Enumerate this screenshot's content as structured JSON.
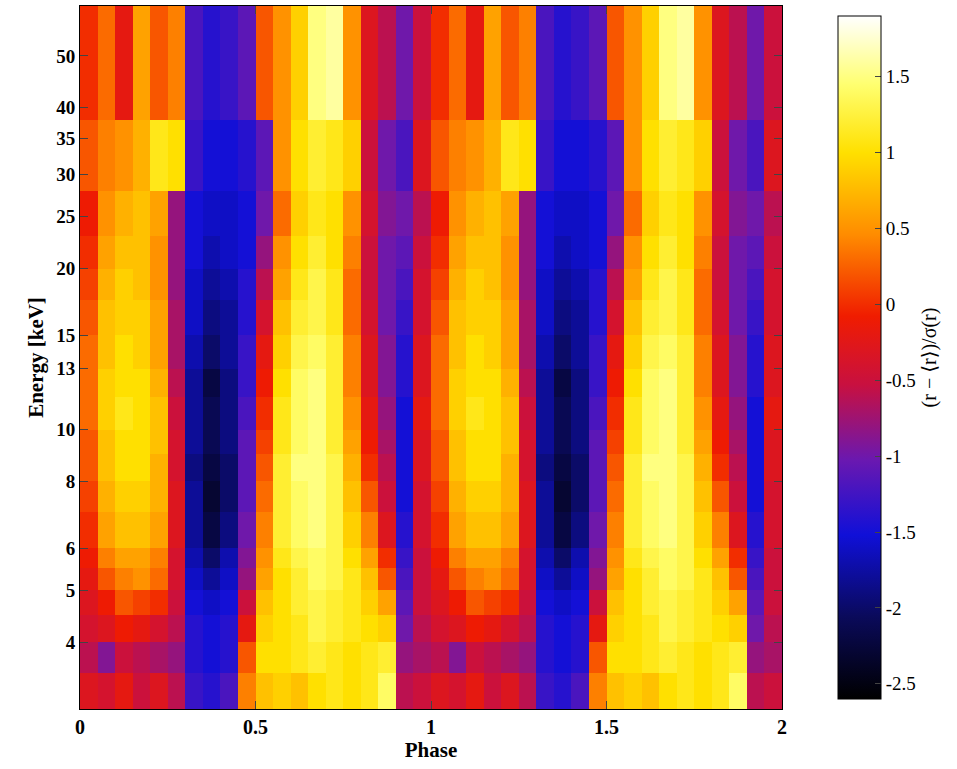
{
  "chart_data": {
    "type": "heatmap",
    "x_label": "Phase",
    "y_label": "Energy [keV]",
    "colorbar_label": "(r − ⟨r⟩)/σ(r)",
    "log": "y",
    "xlim": [
      0,
      2
    ],
    "xticks": [
      0,
      0.5,
      1,
      1.5,
      2
    ],
    "ylim": [
      3,
      62
    ],
    "yticks": [
      4,
      5,
      6,
      8,
      10,
      13,
      15,
      20,
      25,
      30,
      35,
      40,
      50
    ],
    "zlim": [
      -2.6,
      1.9
    ],
    "zticks": [
      -2.5,
      -2,
      -1.5,
      -1,
      -0.5,
      0,
      0.5,
      1,
      1.5
    ],
    "phase_bins": [
      0,
      0.05,
      0.1,
      0.15,
      0.2,
      0.25,
      0.3,
      0.35,
      0.4,
      0.45,
      0.5,
      0.55,
      0.6,
      0.65,
      0.7,
      0.75,
      0.8,
      0.85,
      0.9,
      0.95,
      1,
      1.05,
      1.1,
      1.15,
      1.2,
      1.25,
      1.3,
      1.35,
      1.4,
      1.45,
      1.5,
      1.55,
      1.6,
      1.65,
      1.7,
      1.75,
      1.8,
      1.85,
      1.9,
      1.95,
      2
    ],
    "energy_bins": [
      3,
      3.5,
      4,
      4.5,
      5,
      5.5,
      6,
      7,
      8,
      9,
      10,
      11.5,
      13,
      15,
      17.5,
      20,
      23,
      28,
      38,
      62
    ],
    "values": [
      [
        -0.3,
        -0.4,
        -0.2,
        -0.5,
        -0.3,
        -0.6,
        -1.3,
        -1.4,
        -1.2,
        0.4,
        0.8,
        0.9,
        0.8,
        1.0,
        1.1,
        1.0,
        1.1,
        1.4,
        -0.6,
        -0.5,
        -0.3,
        -0.4,
        -0.2,
        -0.5,
        -0.3,
        -0.6,
        -1.3,
        -1.4,
        -1.2,
        0.4,
        0.8,
        0.9,
        0.8,
        1.0,
        1.1,
        1.0,
        1.1,
        1.4,
        -0.6,
        -0.5
      ],
      [
        -0.6,
        -0.9,
        -0.5,
        -0.6,
        -0.7,
        -0.8,
        -1.4,
        -1.5,
        -1.4,
        0.2,
        1.0,
        1.0,
        1.1,
        1.2,
        1.1,
        1.0,
        1.1,
        1.2,
        -0.8,
        -0.7,
        -0.6,
        -0.9,
        -0.5,
        -0.6,
        -0.7,
        -0.8,
        -1.4,
        -1.5,
        -1.4,
        0.2,
        1.0,
        1.0,
        1.1,
        1.2,
        1.1,
        1.0,
        1.1,
        1.2,
        -0.8,
        -0.7
      ],
      [
        -0.4,
        -0.3,
        -0.1,
        -0.2,
        -0.4,
        -0.6,
        -1.4,
        -1.5,
        -1.4,
        -0.2,
        0.9,
        1.0,
        1.1,
        1.3,
        1.2,
        1.1,
        1.0,
        0.9,
        -1.0,
        -0.6,
        -0.4,
        -0.3,
        -0.1,
        -0.2,
        -0.4,
        -0.6,
        -1.4,
        -1.5,
        -1.4,
        -0.2,
        0.9,
        1.0,
        1.1,
        1.3,
        1.2,
        1.1,
        1.0,
        0.9,
        -1.0,
        -0.6
      ],
      [
        -0.3,
        -0.1,
        0.2,
        0.1,
        0.0,
        -0.5,
        -1.5,
        -1.6,
        -1.5,
        -0.5,
        0.8,
        1.0,
        1.2,
        1.3,
        1.2,
        1.1,
        0.9,
        0.6,
        -1.1,
        -0.5,
        -0.3,
        -0.1,
        0.2,
        0.1,
        0.0,
        -0.5,
        -1.5,
        -1.6,
        -1.5,
        -0.5,
        0.8,
        1.0,
        1.2,
        1.3,
        1.2,
        1.1,
        0.9,
        0.6,
        -1.1,
        -0.5
      ],
      [
        -0.2,
        0.2,
        0.4,
        0.5,
        0.3,
        -0.4,
        -1.6,
        -1.8,
        -1.6,
        -0.8,
        0.6,
        1.0,
        1.2,
        1.4,
        1.3,
        1.1,
        0.8,
        0.2,
        -1.2,
        -0.5,
        -0.2,
        0.2,
        0.4,
        0.5,
        0.3,
        -0.4,
        -1.6,
        -1.8,
        -1.6,
        -0.8,
        0.6,
        1.0,
        1.2,
        1.4,
        1.3,
        1.1,
        0.8,
        0.2,
        -1.2,
        -0.5
      ],
      [
        -0.1,
        0.4,
        0.6,
        0.6,
        0.4,
        -0.4,
        -1.7,
        -2.0,
        -1.7,
        -0.9,
        0.5,
        1.1,
        1.3,
        1.4,
        1.3,
        1.0,
        0.6,
        0.0,
        -1.3,
        -0.5,
        -0.1,
        0.4,
        0.6,
        0.6,
        0.4,
        -0.4,
        -1.7,
        -2.0,
        -1.7,
        -0.9,
        0.5,
        1.1,
        1.3,
        1.4,
        1.3,
        1.0,
        0.6,
        0.0,
        -1.3,
        -0.5
      ],
      [
        0.0,
        0.6,
        0.8,
        0.8,
        0.6,
        -0.3,
        -1.8,
        -2.2,
        -1.9,
        -1.0,
        0.4,
        1.2,
        1.4,
        1.5,
        1.3,
        0.9,
        0.4,
        -0.3,
        -1.4,
        -0.4,
        0.0,
        0.6,
        0.8,
        0.8,
        0.6,
        -0.3,
        -1.8,
        -2.2,
        -1.9,
        -1.0,
        0.4,
        1.2,
        1.4,
        1.5,
        1.3,
        0.9,
        0.4,
        -0.3,
        -1.4,
        -0.4
      ],
      [
        0.1,
        0.7,
        0.9,
        0.9,
        0.7,
        -0.3,
        -1.8,
        -2.3,
        -2.0,
        -1.1,
        0.3,
        1.2,
        1.4,
        1.5,
        1.3,
        0.8,
        0.2,
        -0.5,
        -1.5,
        -0.4,
        0.1,
        0.7,
        0.9,
        0.9,
        0.7,
        -0.3,
        -1.8,
        -2.3,
        -2.0,
        -1.1,
        0.3,
        1.2,
        1.4,
        1.5,
        1.3,
        0.8,
        0.2,
        -0.5,
        -1.5,
        -0.4
      ],
      [
        0.2,
        0.8,
        1.0,
        1.0,
        0.7,
        -0.4,
        -1.9,
        -2.2,
        -2.0,
        -1.1,
        0.2,
        1.2,
        1.5,
        1.5,
        1.3,
        0.7,
        0.0,
        -0.6,
        -1.5,
        -0.3,
        0.2,
        0.8,
        1.0,
        1.0,
        0.7,
        -0.4,
        -1.9,
        -2.2,
        -2.0,
        -1.1,
        0.2,
        1.2,
        1.5,
        1.5,
        1.3,
        0.7,
        0.0,
        -0.6,
        -1.5,
        -0.3
      ],
      [
        0.2,
        0.8,
        1.0,
        1.0,
        0.8,
        -0.4,
        -1.8,
        -2.1,
        -1.9,
        -1.1,
        0.1,
        1.1,
        1.4,
        1.5,
        1.2,
        0.6,
        -0.1,
        -0.7,
        -1.5,
        -0.3,
        0.2,
        0.8,
        1.0,
        1.0,
        0.8,
        -0.4,
        -1.8,
        -2.1,
        -1.9,
        -1.1,
        0.1,
        1.1,
        1.4,
        1.5,
        1.2,
        0.6,
        -0.1,
        -0.7,
        -1.5,
        -0.3
      ],
      [
        0.3,
        0.9,
        1.1,
        1.0,
        0.8,
        -0.5,
        -1.8,
        -2.1,
        -1.9,
        -1.2,
        0.0,
        1.1,
        1.4,
        1.5,
        1.2,
        0.5,
        -0.2,
        -0.8,
        -1.5,
        -0.2,
        0.3,
        0.9,
        1.1,
        1.0,
        0.8,
        -0.5,
        -1.8,
        -2.1,
        -1.9,
        -1.2,
        0.0,
        1.1,
        1.4,
        1.5,
        1.2,
        0.5,
        -0.2,
        -0.8,
        -1.5,
        -0.2
      ],
      [
        0.3,
        0.9,
        1.0,
        1.0,
        0.7,
        -0.6,
        -1.8,
        -2.2,
        -1.9,
        -1.3,
        -0.1,
        1.0,
        1.4,
        1.5,
        1.2,
        0.4,
        -0.3,
        -0.9,
        -1.4,
        -0.3,
        0.3,
        0.9,
        1.0,
        1.0,
        0.7,
        -0.6,
        -1.8,
        -2.2,
        -1.9,
        -1.3,
        -0.1,
        1.0,
        1.4,
        1.5,
        1.2,
        0.4,
        -0.3,
        -0.9,
        -1.4,
        -0.3
      ],
      [
        0.3,
        0.8,
        1.0,
        0.9,
        0.6,
        -0.7,
        -1.7,
        -2.0,
        -1.8,
        -1.3,
        -0.2,
        0.9,
        1.3,
        1.4,
        1.2,
        0.4,
        -0.3,
        -0.9,
        -1.4,
        -0.3,
        0.3,
        0.8,
        1.0,
        0.9,
        0.6,
        -0.7,
        -1.7,
        -2.0,
        -1.8,
        -1.3,
        -0.2,
        0.9,
        1.3,
        1.4,
        1.2,
        0.4,
        -0.3,
        -0.9,
        -1.4,
        -0.3
      ],
      [
        0.2,
        0.8,
        0.9,
        0.9,
        0.6,
        -0.7,
        -1.6,
        -1.9,
        -1.8,
        -1.4,
        -0.4,
        0.8,
        1.2,
        1.3,
        1.1,
        0.3,
        -0.4,
        -1.0,
        -1.3,
        -0.4,
        0.2,
        0.8,
        0.9,
        0.9,
        0.6,
        -0.7,
        -1.6,
        -1.9,
        -1.8,
        -1.4,
        -0.4,
        0.8,
        1.2,
        1.3,
        1.1,
        0.3,
        -0.4,
        -1.0,
        -1.3,
        -0.4
      ],
      [
        0.1,
        0.7,
        0.9,
        0.8,
        0.5,
        -0.8,
        -1.6,
        -1.8,
        -1.7,
        -1.4,
        -0.6,
        0.6,
        1.1,
        1.3,
        1.1,
        0.3,
        -0.5,
        -1.0,
        -1.2,
        -0.4,
        0.1,
        0.7,
        0.9,
        0.8,
        0.5,
        -0.8,
        -1.6,
        -1.8,
        -1.7,
        -1.4,
        -0.6,
        0.6,
        1.1,
        1.3,
        1.1,
        0.3,
        -0.5,
        -1.0,
        -1.2,
        -0.4
      ],
      [
        0.0,
        0.6,
        0.8,
        0.8,
        0.5,
        -0.8,
        -1.5,
        -1.7,
        -1.6,
        -1.5,
        -0.8,
        0.5,
        1.0,
        1.2,
        1.0,
        0.4,
        -0.5,
        -1.0,
        -1.1,
        -0.5,
        0.0,
        0.6,
        0.8,
        0.8,
        0.5,
        -0.8,
        -1.5,
        -1.7,
        -1.6,
        -1.5,
        -0.8,
        0.5,
        1.0,
        1.2,
        1.0,
        0.4,
        -0.5,
        -1.0,
        -1.1,
        -0.5
      ],
      [
        -0.1,
        0.5,
        0.7,
        0.8,
        0.6,
        -0.8,
        -1.5,
        -1.6,
        -1.6,
        -1.5,
        -1.0,
        0.3,
        0.9,
        1.1,
        1.0,
        0.5,
        -0.4,
        -0.9,
        -1.0,
        -0.6,
        -0.1,
        0.5,
        0.7,
        0.8,
        0.6,
        -0.8,
        -1.5,
        -1.6,
        -1.6,
        -1.5,
        -1.0,
        0.3,
        0.9,
        1.1,
        1.0,
        0.5,
        -0.4,
        -0.9,
        -1.0,
        -0.6
      ],
      [
        0.2,
        0.4,
        0.5,
        0.7,
        1.1,
        1.0,
        -1.3,
        -1.5,
        -1.5,
        -1.4,
        -1.1,
        0.5,
        1.0,
        1.2,
        1.1,
        0.9,
        -0.5,
        -1.0,
        -1.2,
        -0.3,
        0.2,
        0.4,
        0.5,
        0.7,
        1.1,
        1.0,
        -1.3,
        -1.5,
        -1.5,
        -1.4,
        -1.1,
        0.5,
        1.0,
        1.2,
        1.1,
        0.9,
        -0.5,
        -1.0,
        -1.2,
        -0.3
      ],
      [
        0.0,
        0.3,
        -0.2,
        0.6,
        0.2,
        0.4,
        -1.2,
        -1.4,
        -1.3,
        -1.1,
        0.2,
        0.5,
        0.9,
        1.5,
        1.6,
        0.5,
        -0.3,
        -0.6,
        -1.0,
        -0.5,
        0.0,
        0.3,
        -0.2,
        0.6,
        0.2,
        0.4,
        -1.2,
        -1.4,
        -1.3,
        -1.1,
        0.2,
        0.5,
        0.9,
        1.5,
        1.6,
        0.5,
        -0.3,
        -0.6,
        -1.0,
        -0.5
      ]
    ]
  }
}
